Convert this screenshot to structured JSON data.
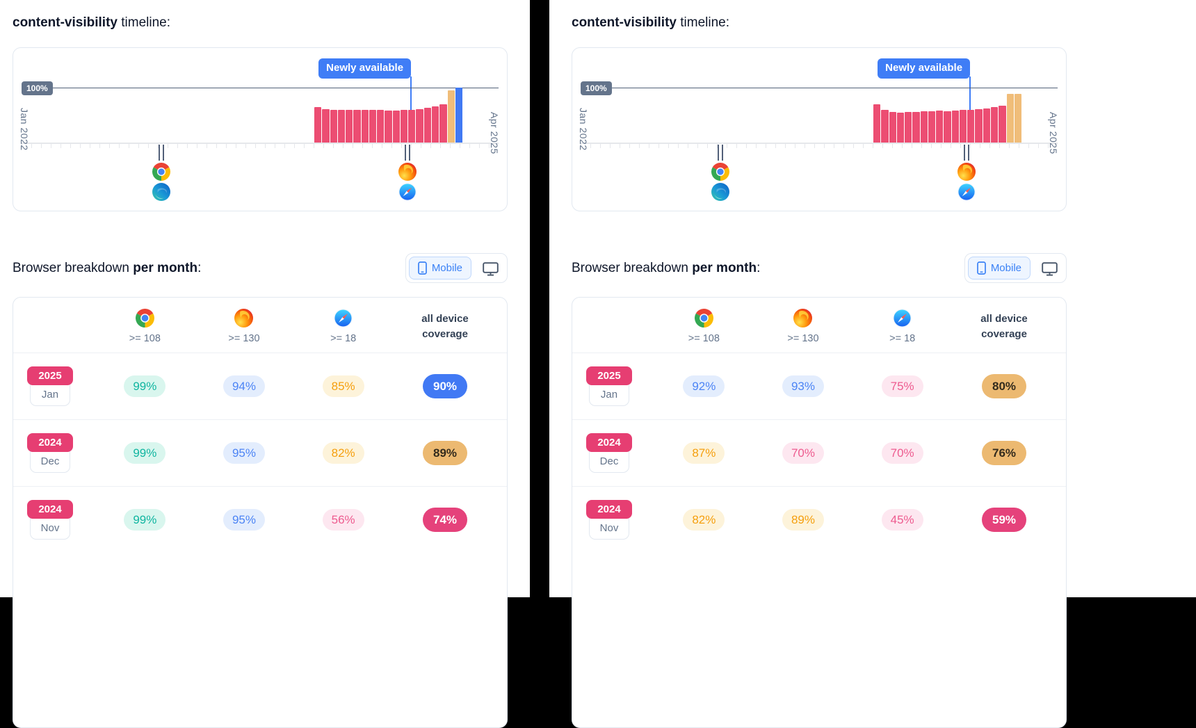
{
  "panels": [
    {
      "title": {
        "code": "content-visibility",
        "rest": " timeline:"
      },
      "timeline": {
        "annotation": "Newly available",
        "max_label": "100%",
        "x_start": "Jan 2022",
        "x_end": "Apr 2025"
      },
      "breakdown": {
        "heading_plain": "Browser breakdown ",
        "heading_bold": "per month",
        "heading_colon": ":",
        "toggle_mobile": "Mobile",
        "columns": {
          "chrome": ">= 108",
          "firefox": ">= 130",
          "safari": ">= 18",
          "coverage": "all device coverage"
        },
        "rows": [
          {
            "year": "2025",
            "month": "Jan",
            "cells": [
              {
                "value": "99%",
                "tone": "teal"
              },
              {
                "value": "94%",
                "tone": "blue"
              },
              {
                "value": "85%",
                "tone": "amber"
              },
              {
                "value": "90%",
                "tone": "cov-blue"
              }
            ]
          },
          {
            "year": "2024",
            "month": "Dec",
            "cells": [
              {
                "value": "99%",
                "tone": "teal"
              },
              {
                "value": "95%",
                "tone": "blue"
              },
              {
                "value": "82%",
                "tone": "amber"
              },
              {
                "value": "89%",
                "tone": "cov-tan"
              }
            ]
          },
          {
            "year": "2024",
            "month": "Nov",
            "cells": [
              {
                "value": "99%",
                "tone": "teal"
              },
              {
                "value": "95%",
                "tone": "blue"
              },
              {
                "value": "56%",
                "tone": "pink"
              },
              {
                "value": "74%",
                "tone": "cov-pink"
              }
            ]
          }
        ]
      }
    },
    {
      "title": {
        "code": "content-visibility",
        "rest": " timeline:"
      },
      "timeline": {
        "annotation": "Newly available",
        "max_label": "100%",
        "x_start": "Jan 2022",
        "x_end": "Apr 2025"
      },
      "breakdown": {
        "heading_plain": "Browser breakdown ",
        "heading_bold": "per month",
        "heading_colon": ":",
        "toggle_mobile": "Mobile",
        "columns": {
          "chrome": ">= 108",
          "firefox": ">= 130",
          "safari": ">= 18",
          "coverage": "all device coverage"
        },
        "rows": [
          {
            "year": "2025",
            "month": "Jan",
            "cells": [
              {
                "value": "92%",
                "tone": "blue"
              },
              {
                "value": "93%",
                "tone": "blue"
              },
              {
                "value": "75%",
                "tone": "pink"
              },
              {
                "value": "80%",
                "tone": "cov-tan"
              }
            ]
          },
          {
            "year": "2024",
            "month": "Dec",
            "cells": [
              {
                "value": "87%",
                "tone": "amber"
              },
              {
                "value": "70%",
                "tone": "pink"
              },
              {
                "value": "70%",
                "tone": "pink"
              },
              {
                "value": "76%",
                "tone": "cov-tan"
              }
            ]
          },
          {
            "year": "2024",
            "month": "Nov",
            "cells": [
              {
                "value": "82%",
                "tone": "amber"
              },
              {
                "value": "89%",
                "tone": "amber"
              },
              {
                "value": "45%",
                "tone": "pink"
              },
              {
                "value": "59%",
                "tone": "cov-pink"
              }
            ]
          }
        ]
      }
    }
  ],
  "chart_data": [
    {
      "type": "bar",
      "title": "content-visibility support timeline (left panel)",
      "x_range": [
        "Jan 2022",
        "Apr 2025"
      ],
      "y_reference_label": "100%",
      "annotation": "Newly available",
      "annotation_line_pos": 84.3,
      "markers": [
        {
          "pos": 30,
          "browsers": [
            "chrome",
            "edge"
          ]
        },
        {
          "pos": 83.5,
          "browsers": [
            "firefox",
            "safari"
          ]
        }
      ],
      "bars": [
        {
          "v": 64,
          "c": "pink"
        },
        {
          "v": 61,
          "c": "pink"
        },
        {
          "v": 60,
          "c": "pink"
        },
        {
          "v": 59,
          "c": "pink"
        },
        {
          "v": 60,
          "c": "pink"
        },
        {
          "v": 60,
          "c": "pink"
        },
        {
          "v": 59,
          "c": "pink"
        },
        {
          "v": 59,
          "c": "pink"
        },
        {
          "v": 59,
          "c": "pink"
        },
        {
          "v": 58,
          "c": "pink"
        },
        {
          "v": 58,
          "c": "pink"
        },
        {
          "v": 59,
          "c": "pink"
        },
        {
          "v": 60,
          "c": "pink"
        },
        {
          "v": 61,
          "c": "pink"
        },
        {
          "v": 63,
          "c": "pink"
        },
        {
          "v": 66,
          "c": "pink"
        },
        {
          "v": 70,
          "c": "pink"
        },
        {
          "v": 95,
          "c": "tan"
        },
        {
          "v": 100,
          "c": "blue"
        }
      ]
    },
    {
      "type": "bar",
      "title": "content-visibility support timeline (right panel)",
      "x_range": [
        "Jan 2022",
        "Apr 2025"
      ],
      "y_reference_label": "100%",
      "annotation": "Newly available",
      "annotation_line_pos": 84.3,
      "markers": [
        {
          "pos": 30,
          "browsers": [
            "chrome",
            "edge"
          ]
        },
        {
          "pos": 83.5,
          "browsers": [
            "firefox",
            "safari"
          ]
        }
      ],
      "bars": [
        {
          "v": 70,
          "c": "pink"
        },
        {
          "v": 60,
          "c": "pink"
        },
        {
          "v": 56,
          "c": "pink"
        },
        {
          "v": 55,
          "c": "pink"
        },
        {
          "v": 56,
          "c": "pink"
        },
        {
          "v": 56,
          "c": "pink"
        },
        {
          "v": 57,
          "c": "pink"
        },
        {
          "v": 57,
          "c": "pink"
        },
        {
          "v": 58,
          "c": "pink"
        },
        {
          "v": 57,
          "c": "pink"
        },
        {
          "v": 58,
          "c": "pink"
        },
        {
          "v": 59,
          "c": "pink"
        },
        {
          "v": 60,
          "c": "pink"
        },
        {
          "v": 61,
          "c": "pink"
        },
        {
          "v": 62,
          "c": "pink"
        },
        {
          "v": 64,
          "c": "pink"
        },
        {
          "v": 67,
          "c": "pink"
        },
        {
          "v": 88,
          "c": "tan"
        },
        {
          "v": 88,
          "c": "tan"
        }
      ]
    }
  ],
  "colors": {
    "bar_pink": "#ec4d72",
    "bar_tan": "#f0bd79",
    "bar_blue": "#4079f3",
    "annotation_blue": "#3f7df6",
    "year_badge_pink": "#e63e72",
    "coverage_blue": "#4179f4",
    "coverage_tan": "#ecb971",
    "coverage_pink": "#e5427b"
  }
}
